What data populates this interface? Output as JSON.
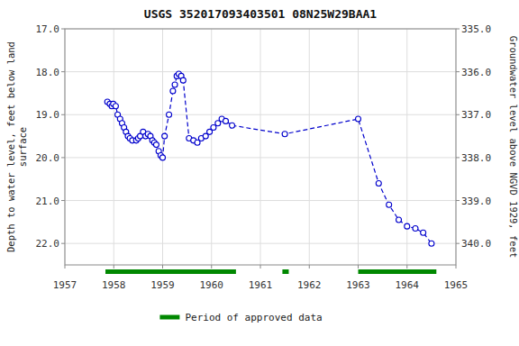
{
  "chart_data": {
    "type": "line",
    "title": "USGS 352017093403501 08N25W29BAA1",
    "y_label": "Depth to water level, feet below land\nsurface",
    "y2_label": "Groundwater level above NGVD 1929, feet",
    "x": [
      1957.87,
      1957.92,
      1957.96,
      1957.99,
      1958.04,
      1958.08,
      1958.13,
      1958.17,
      1958.21,
      1958.25,
      1958.29,
      1958.33,
      1958.38,
      1958.46,
      1958.5,
      1958.54,
      1958.6,
      1958.65,
      1958.7,
      1958.75,
      1958.79,
      1958.83,
      1958.87,
      1958.92,
      1958.96,
      1959.0,
      1959.04,
      1959.13,
      1959.21,
      1959.25,
      1959.29,
      1959.33,
      1959.38,
      1959.42,
      1959.54,
      1959.63,
      1959.71,
      1959.79,
      1959.88,
      1959.96,
      1960.04,
      1960.13,
      1960.21,
      1960.29,
      1960.42,
      1961.5,
      1963.0,
      1963.42,
      1963.63,
      1963.83,
      1964.0,
      1964.17,
      1964.33,
      1964.5
    ],
    "series": [
      {
        "color": "#0000cc",
        "line_style": "dashed",
        "marker": "open-circle",
        "values": [
          18.7,
          18.75,
          18.8,
          18.75,
          18.8,
          19.0,
          19.1,
          19.2,
          19.3,
          19.4,
          19.5,
          19.55,
          19.6,
          19.6,
          19.55,
          19.5,
          19.4,
          19.5,
          19.45,
          19.5,
          19.6,
          19.65,
          19.7,
          19.85,
          19.95,
          20.0,
          19.5,
          19.0,
          18.45,
          18.3,
          18.1,
          18.05,
          18.1,
          18.2,
          19.55,
          19.6,
          19.65,
          19.55,
          19.5,
          19.4,
          19.3,
          19.2,
          19.1,
          19.15,
          19.25,
          19.45,
          19.1,
          20.6,
          21.1,
          21.45,
          21.6,
          21.65,
          21.75,
          22.0
        ]
      }
    ],
    "approved_periods": {
      "name": "Period of approved data",
      "color": "#008800",
      "ranges": [
        [
          1957.83,
          1960.5
        ],
        [
          1961.45,
          1961.58
        ],
        [
          1963.0,
          1964.6
        ]
      ]
    },
    "xlim": [
      1957,
      1965
    ],
    "xticks": [
      1957,
      1958,
      1959,
      1960,
      1961,
      1962,
      1963,
      1964,
      1965
    ],
    "ylim": [
      22.5,
      17.0
    ],
    "yticks": [
      {
        "value": 17.0,
        "label": "17.0"
      },
      {
        "value": 18.0,
        "label": "18.0"
      },
      {
        "value": 19.0,
        "label": "19.0"
      },
      {
        "value": 20.0,
        "label": "20.0"
      },
      {
        "value": 21.0,
        "label": "21.0"
      },
      {
        "value": 22.0,
        "label": "22.0"
      }
    ],
    "y2lim": [
      340.5,
      335.0
    ],
    "y2ticks": [
      {
        "value": 340.0,
        "label": "340.0"
      },
      {
        "value": 339.0,
        "label": "339.0"
      },
      {
        "value": 338.0,
        "label": "338.0"
      },
      {
        "value": 337.0,
        "label": "337.0"
      },
      {
        "value": 336.0,
        "label": "336.0"
      },
      {
        "value": 335.0,
        "label": "335.0"
      }
    ],
    "grid": true,
    "legend": "bottom"
  }
}
